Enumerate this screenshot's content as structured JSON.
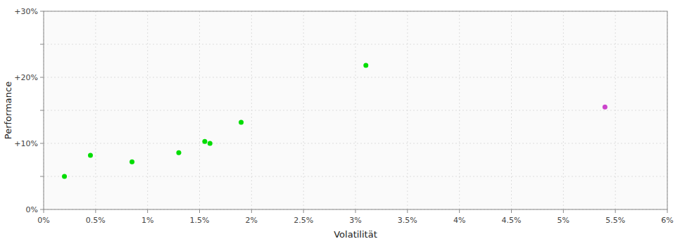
{
  "chart_data": {
    "type": "scatter",
    "xlabel": "Volatilität",
    "ylabel": "Performance",
    "xlim": [
      0,
      0.06
    ],
    "ylim": [
      0,
      0.3
    ],
    "xticks": [
      {
        "value": 0.0,
        "label": "0%"
      },
      {
        "value": 0.005,
        "label": "0.5%"
      },
      {
        "value": 0.01,
        "label": "1%"
      },
      {
        "value": 0.015,
        "label": "1.5%"
      },
      {
        "value": 0.02,
        "label": "2%"
      },
      {
        "value": 0.025,
        "label": "2.5%"
      },
      {
        "value": 0.03,
        "label": "3%"
      },
      {
        "value": 0.035,
        "label": "3.5%"
      },
      {
        "value": 0.04,
        "label": "4%"
      },
      {
        "value": 0.045,
        "label": "4.5%"
      },
      {
        "value": 0.05,
        "label": "5%"
      },
      {
        "value": 0.055,
        "label": "5.5%"
      },
      {
        "value": 0.06,
        "label": "6%"
      }
    ],
    "yticks": [
      {
        "value": 0.0,
        "label": "0%"
      },
      {
        "value": 0.05,
        "label": null
      },
      {
        "value": 0.1,
        "label": "+10%"
      },
      {
        "value": 0.15,
        "label": null
      },
      {
        "value": 0.2,
        "label": "+20%"
      },
      {
        "value": 0.25,
        "label": null
      },
      {
        "value": 0.3,
        "label": "+30%"
      }
    ],
    "grid": true,
    "marker": "circle",
    "series": [
      {
        "color": "#00dd00",
        "x": [
          0.002,
          0.0045,
          0.0085,
          0.013,
          0.0155,
          0.016,
          0.019,
          0.031
        ],
        "values": [
          0.05,
          0.082,
          0.072,
          0.086,
          0.103,
          0.1,
          0.132,
          0.218
        ]
      },
      {
        "color": "#cc44cc",
        "x": [
          0.054
        ],
        "values": [
          0.155
        ]
      }
    ]
  }
}
